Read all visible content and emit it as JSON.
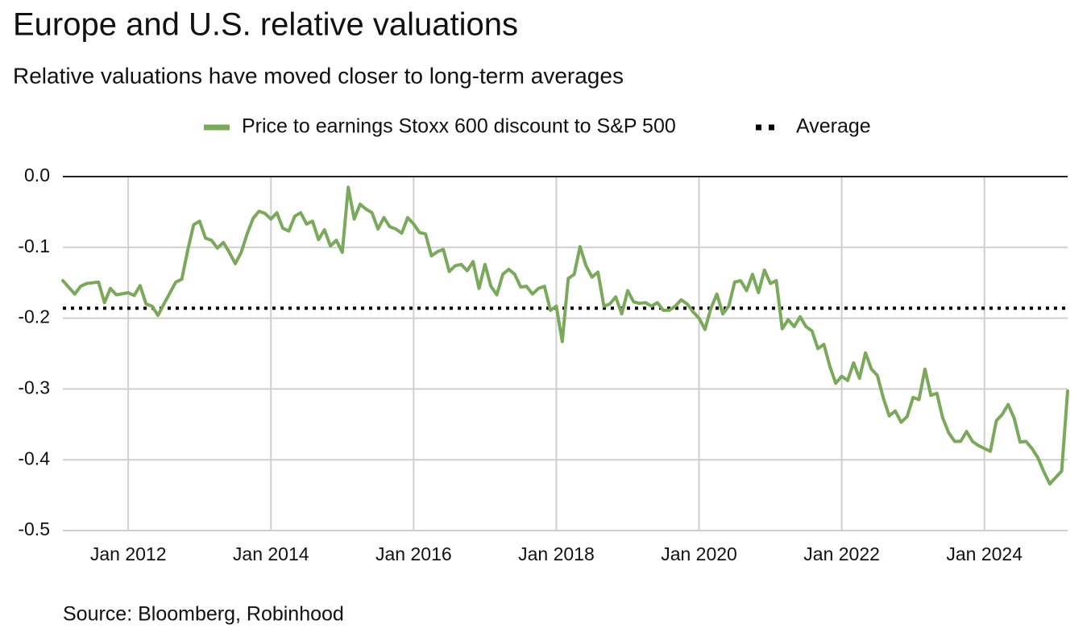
{
  "chart_data": {
    "type": "line",
    "title": "Europe and U.S. relative valuations",
    "subtitle": "Relative valuations have moved closer to long-term averages",
    "source": "Source: Bloomberg, Robinhood",
    "x": [
      "2011-02",
      "2011-04",
      "2011-05",
      "2011-06",
      "2011-08",
      "2011-09",
      "2011-10",
      "2011-11",
      "2012-01",
      "2012-02",
      "2012-03",
      "2012-04",
      "2012-05",
      "2012-06",
      "2012-07",
      "2012-09",
      "2012-10",
      "2012-11",
      "2012-12",
      "2013-01",
      "2013-02",
      "2013-03",
      "2013-04",
      "2013-05",
      "2013-06",
      "2013-07",
      "2013-08",
      "2013-09",
      "2013-10",
      "2013-11",
      "2013-12",
      "2014-01",
      "2014-02",
      "2014-03",
      "2014-04",
      "2014-05",
      "2014-06",
      "2014-07",
      "2014-08",
      "2014-09",
      "2014-10",
      "2014-11",
      "2014-12",
      "2015-01",
      "2015-02",
      "2015-03",
      "2015-04",
      "2015-05",
      "2015-06",
      "2015-07",
      "2015-08",
      "2015-09",
      "2015-10",
      "2015-11",
      "2015-12",
      "2016-01",
      "2016-02",
      "2016-03",
      "2016-04",
      "2016-05",
      "2016-06",
      "2016-07",
      "2016-08",
      "2016-09",
      "2016-10",
      "2016-11",
      "2016-12",
      "2017-01",
      "2017-02",
      "2017-03",
      "2017-04",
      "2017-05",
      "2017-06",
      "2017-07",
      "2017-08",
      "2017-09",
      "2017-10",
      "2017-11",
      "2017-12",
      "2018-01",
      "2018-02",
      "2018-03",
      "2018-04",
      "2018-05",
      "2018-06",
      "2018-07",
      "2018-08",
      "2018-09",
      "2018-10",
      "2018-11",
      "2018-12",
      "2019-01",
      "2019-02",
      "2019-03",
      "2019-04",
      "2019-05",
      "2019-06",
      "2019-07",
      "2019-08",
      "2019-09",
      "2019-10",
      "2019-11",
      "2019-12",
      "2020-01",
      "2020-02",
      "2020-03",
      "2020-04",
      "2020-05",
      "2020-06",
      "2020-07",
      "2020-08",
      "2020-09",
      "2020-10",
      "2020-11",
      "2020-12",
      "2021-01",
      "2021-02",
      "2021-03",
      "2021-04",
      "2021-05",
      "2021-06",
      "2021-07",
      "2021-08",
      "2021-09",
      "2021-10",
      "2021-11",
      "2021-12",
      "2022-01",
      "2022-02",
      "2022-03",
      "2022-04",
      "2022-05",
      "2022-06",
      "2022-07",
      "2022-08",
      "2022-09",
      "2022-10",
      "2022-11",
      "2022-12",
      "2023-01",
      "2023-02",
      "2023-03",
      "2023-04",
      "2023-05",
      "2023-06",
      "2023-07",
      "2023-08",
      "2023-09",
      "2023-10",
      "2023-11",
      "2023-12",
      "2024-01",
      "2024-02",
      "2024-03",
      "2024-04",
      "2024-05",
      "2024-06",
      "2024-07",
      "2024-08",
      "2024-09",
      "2024-10",
      "2024-11",
      "2024-12",
      "2025-01",
      "2025-02",
      "2025-03"
    ],
    "series": [
      {
        "name": "Price to earnings Stoxx 600 discount to S&P 500",
        "color": "#7aa95c",
        "values": [
          -0.147,
          -0.166,
          -0.155,
          -0.151,
          -0.149,
          -0.178,
          -0.158,
          -0.167,
          -0.164,
          -0.168,
          -0.154,
          -0.18,
          -0.183,
          -0.196,
          -0.18,
          -0.149,
          -0.145,
          -0.104,
          -0.068,
          -0.063,
          -0.087,
          -0.09,
          -0.101,
          -0.093,
          -0.107,
          -0.123,
          -0.107,
          -0.081,
          -0.059,
          -0.049,
          -0.052,
          -0.06,
          -0.051,
          -0.073,
          -0.077,
          -0.056,
          -0.051,
          -0.067,
          -0.063,
          -0.089,
          -0.075,
          -0.098,
          -0.09,
          -0.107,
          -0.015,
          -0.06,
          -0.039,
          -0.046,
          -0.051,
          -0.074,
          -0.058,
          -0.071,
          -0.074,
          -0.08,
          -0.058,
          -0.067,
          -0.079,
          -0.081,
          -0.112,
          -0.106,
          -0.103,
          -0.134,
          -0.126,
          -0.124,
          -0.133,
          -0.12,
          -0.158,
          -0.124,
          -0.155,
          -0.167,
          -0.138,
          -0.131,
          -0.138,
          -0.156,
          -0.155,
          -0.166,
          -0.158,
          -0.155,
          -0.189,
          -0.183,
          -0.233,
          -0.144,
          -0.138,
          -0.099,
          -0.126,
          -0.142,
          -0.135,
          -0.183,
          -0.18,
          -0.17,
          -0.194,
          -0.161,
          -0.177,
          -0.179,
          -0.178,
          -0.183,
          -0.178,
          -0.189,
          -0.189,
          -0.183,
          -0.174,
          -0.18,
          -0.191,
          -0.2,
          -0.216,
          -0.186,
          -0.166,
          -0.194,
          -0.183,
          -0.149,
          -0.147,
          -0.161,
          -0.138,
          -0.164,
          -0.132,
          -0.151,
          -0.147,
          -0.215,
          -0.202,
          -0.212,
          -0.198,
          -0.212,
          -0.218,
          -0.243,
          -0.237,
          -0.268,
          -0.292,
          -0.282,
          -0.288,
          -0.263,
          -0.285,
          -0.249,
          -0.272,
          -0.281,
          -0.313,
          -0.338,
          -0.331,
          -0.347,
          -0.339,
          -0.312,
          -0.315,
          -0.272,
          -0.309,
          -0.306,
          -0.341,
          -0.362,
          -0.374,
          -0.374,
          -0.36,
          -0.374,
          -0.38,
          -0.384,
          -0.388,
          -0.345,
          -0.336,
          -0.322,
          -0.341,
          -0.375,
          -0.374,
          -0.384,
          -0.397,
          -0.417,
          -0.434,
          -0.425,
          -0.416,
          -0.303
        ]
      }
    ],
    "average": {
      "name": "Average",
      "value": -0.186,
      "color": "#000000"
    },
    "xlim": [
      "2011-02",
      "2025-03"
    ],
    "xticks": [
      {
        "value": "2012-01",
        "label": "Jan 2012"
      },
      {
        "value": "2014-01",
        "label": "Jan 2014"
      },
      {
        "value": "2016-01",
        "label": "Jan 2016"
      },
      {
        "value": "2018-01",
        "label": "Jan 2018"
      },
      {
        "value": "2020-01",
        "label": "Jan 2020"
      },
      {
        "value": "2022-01",
        "label": "Jan 2022"
      },
      {
        "value": "2024-01",
        "label": "Jan 2024"
      }
    ],
    "ylim": [
      -0.5,
      0
    ],
    "yticks": [
      {
        "value": 0,
        "label": "0.0"
      },
      -0.1,
      -0.2,
      -0.3,
      -0.4,
      -0.5
    ],
    "grid": true
  }
}
